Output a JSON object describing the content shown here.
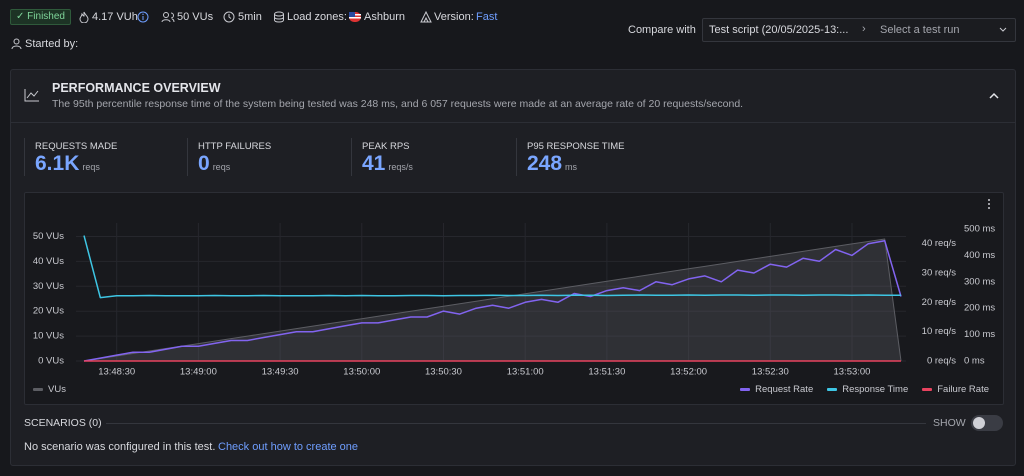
{
  "header": {
    "status": "Finished",
    "vuh": "4.17 VUh",
    "vus": "50 VUs",
    "duration": "5min",
    "load_zones_label": "Load zones:",
    "load_zone": "Ashburn",
    "version_label": "Version:",
    "version": "Fast",
    "started_by": "Started by:",
    "compare_label": "Compare with",
    "compare_script": "Test script (20/05/2025-13:...",
    "select_placeholder": "Select a test run"
  },
  "overview": {
    "title": "PERFORMANCE OVERVIEW",
    "summary": "The 95th percentile response time of the system being tested was 248 ms, and 6 057 requests were made at an average rate of 20 requests/second.",
    "metrics": [
      {
        "label": "REQUESTS MADE",
        "value": "6.1K",
        "unit": "reqs"
      },
      {
        "label": "HTTP FAILURES",
        "value": "0",
        "unit": "reqs"
      },
      {
        "label": "PEAK RPS",
        "value": "41",
        "unit": "reqs/s"
      },
      {
        "label": "P95 RESPONSE TIME",
        "value": "248",
        "unit": "ms"
      }
    ]
  },
  "chart_data": {
    "type": "line",
    "categories": [
      null,
      null,
      "13:48:30",
      null,
      null,
      null,
      null,
      "13:49:00",
      null,
      null,
      null,
      null,
      "13:49:30",
      null,
      null,
      null,
      null,
      "13:50:00",
      null,
      null,
      null,
      null,
      "13:50:30",
      null,
      null,
      null,
      null,
      "13:51:00",
      null,
      null,
      null,
      null,
      "13:51:30",
      null,
      null,
      null,
      null,
      "13:52:00",
      null,
      null,
      null,
      null,
      "13:52:30",
      null,
      null,
      null,
      null,
      "13:53:00",
      null,
      null,
      null
    ],
    "ylim": [
      0,
      53
    ],
    "yticks": [
      {
        "value": 0,
        "label": "0 VUs"
      },
      {
        "value": 10,
        "label": "10 VUs"
      },
      {
        "value": 20,
        "label": "20 VUs"
      },
      {
        "value": 30,
        "label": "30 VUs"
      },
      {
        "value": 40,
        "label": "40 VUs"
      },
      {
        "value": 50,
        "label": "50 VUs"
      }
    ],
    "y2lim": [
      0,
      45
    ],
    "y2ticks": [
      {
        "value": 0,
        "label": "0 req/s"
      },
      {
        "value": 10,
        "label": "10 req/s"
      },
      {
        "value": 20,
        "label": "20 req/s"
      },
      {
        "value": 30,
        "label": "30 req/s"
      },
      {
        "value": 40,
        "label": "40 req/s"
      }
    ],
    "y3lim": [
      0,
      500
    ],
    "y3ticks": [
      {
        "value": 0,
        "label": "0 ms"
      },
      {
        "value": 100,
        "label": "100 ms"
      },
      {
        "value": 200,
        "label": "200 ms"
      },
      {
        "value": 300,
        "label": "300 ms"
      },
      {
        "value": 400,
        "label": "400 ms"
      },
      {
        "value": 500,
        "label": "500 ms"
      }
    ],
    "grid": true,
    "series": [
      {
        "name": "VUs",
        "color": "#5c5d63",
        "area": true,
        "axis": "y",
        "values": [
          0,
          1,
          2,
          3,
          4,
          5,
          6,
          7,
          8,
          9,
          10,
          11,
          12,
          13,
          14,
          15,
          16,
          17,
          18,
          19,
          20,
          21,
          22,
          23,
          24,
          25,
          26,
          27,
          28,
          29,
          30,
          31,
          32,
          33,
          34,
          35,
          36,
          37,
          38,
          39,
          40,
          41,
          42,
          43,
          44,
          45,
          46,
          47,
          48,
          49,
          0
        ]
      },
      {
        "name": "Request Rate",
        "color": "#8264f0",
        "axis": "y2",
        "values": [
          0,
          1,
          2,
          3,
          3,
          4,
          5,
          5,
          6,
          7,
          7,
          8,
          9,
          10,
          10,
          11,
          12,
          13,
          13,
          14,
          15,
          15,
          17,
          16,
          18,
          19,
          18,
          20,
          21,
          20,
          23,
          22,
          24,
          25,
          24,
          27,
          26,
          28,
          29,
          27,
          31,
          30,
          33,
          32,
          35,
          34,
          38,
          36,
          40,
          41,
          22
        ]
      },
      {
        "name": "Response Time",
        "color": "#3ec6e4",
        "axis": "y3",
        "values": [
          475,
          240,
          247,
          247,
          248,
          247,
          247,
          247,
          248,
          247,
          247,
          248,
          247,
          247,
          247,
          248,
          247,
          248,
          247,
          247,
          248,
          248,
          247,
          248,
          248,
          249,
          248,
          248,
          249,
          248,
          249,
          249,
          248,
          249,
          250,
          249,
          249,
          250,
          249,
          250,
          250,
          249,
          250,
          250,
          249,
          250,
          250,
          249,
          250,
          249,
          249
        ]
      },
      {
        "name": "Failure Rate",
        "color": "#e8435f",
        "axis": "y2",
        "values": [
          0,
          0,
          0,
          0,
          0,
          0,
          0,
          0,
          0,
          0,
          0,
          0,
          0,
          0,
          0,
          0,
          0,
          0,
          0,
          0,
          0,
          0,
          0,
          0,
          0,
          0,
          0,
          0,
          0,
          0,
          0,
          0,
          0,
          0,
          0,
          0,
          0,
          0,
          0,
          0,
          0,
          0,
          0,
          0,
          0,
          0,
          0,
          0,
          0,
          0,
          0
        ]
      }
    ]
  },
  "scenarios": {
    "title": "SCENARIOS (0)",
    "show": "SHOW",
    "message": "No scenario was configured in this test.",
    "link": "Check out how to create one"
  }
}
